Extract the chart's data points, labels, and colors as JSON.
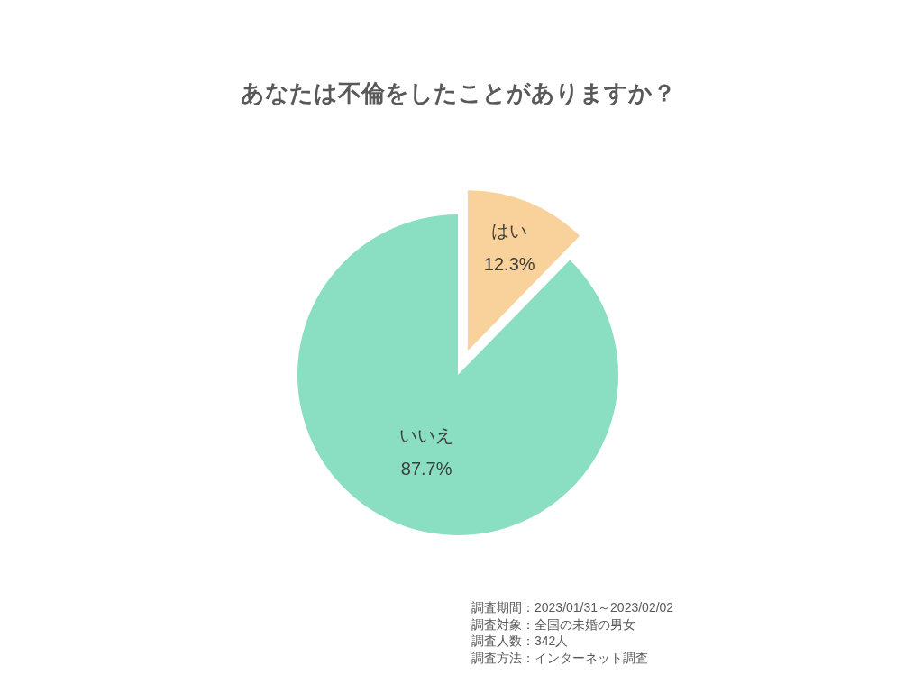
{
  "chart_data": {
    "type": "pie",
    "title": "あなたは不倫をしたことがありますか？",
    "categories": [
      "はい",
      "いいえ"
    ],
    "values": [
      12.3,
      87.7
    ],
    "colors": [
      "#f9d29b",
      "#8adfc3"
    ],
    "value_labels": [
      "12.3%",
      "87.7%"
    ],
    "annotations": [
      "調査期間：2023/01/31～2023/02/02",
      "調査対象：全国の未婚の男女",
      "調査人数：342人",
      "調査方法：インターネット調査"
    ]
  }
}
